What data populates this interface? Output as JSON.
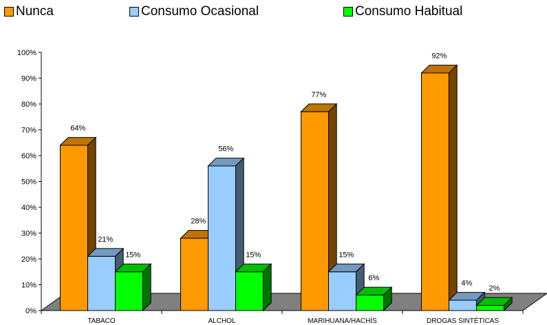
{
  "chart_data": {
    "type": "bar",
    "categories": [
      "TABACO",
      "ALCHOL",
      "MARIHUANA/HACHÍS",
      "DROGAS SINTÉTICAS"
    ],
    "series": [
      {
        "name": "Nunca",
        "values": [
          64,
          28,
          77,
          92
        ],
        "labels": [
          "64%",
          "28%",
          "77%",
          "92%"
        ],
        "color": "#ff9900"
      },
      {
        "name": "Consumo Ocasional",
        "values": [
          21,
          56,
          15,
          4
        ],
        "labels": [
          "21%",
          "56%",
          "15%",
          "4%"
        ],
        "color": "#99ccff"
      },
      {
        "name": "Consumo Habitual",
        "values": [
          15,
          15,
          6,
          2
        ],
        "labels": [
          "15%",
          "15%",
          "6%",
          "2%"
        ],
        "color": "#00ff00"
      }
    ],
    "y_ticks": [
      "0%",
      "10%",
      "20%",
      "30%",
      "40%",
      "50%",
      "60%",
      "70%",
      "80%",
      "90%",
      "100%"
    ],
    "ylim": [
      0,
      100
    ],
    "legend_position": "top",
    "grid": false,
    "floor_color": "#808080"
  }
}
